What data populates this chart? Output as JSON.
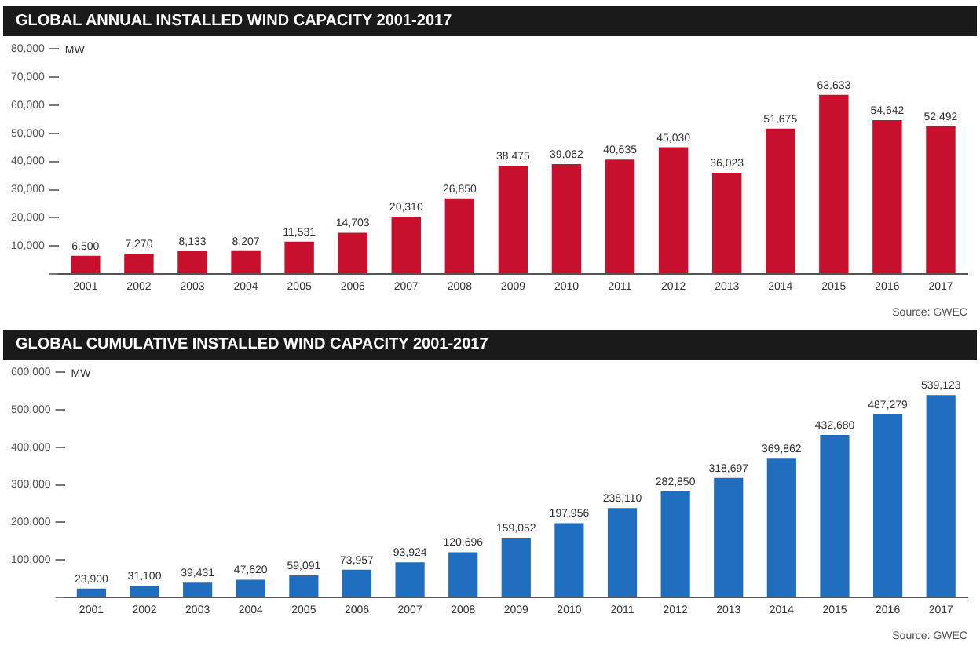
{
  "chart_data": [
    {
      "type": "bar",
      "title": "GLOBAL ANNUAL INSTALLED WIND CAPACITY 2001-2017",
      "ylabel": "MW",
      "categories": [
        "2001",
        "2002",
        "2003",
        "2004",
        "2005",
        "2006",
        "2007",
        "2008",
        "2009",
        "2010",
        "2011",
        "2012",
        "2013",
        "2014",
        "2015",
        "2016",
        "2017"
      ],
      "values": [
        6500,
        7270,
        8133,
        8207,
        11531,
        14703,
        20310,
        26850,
        38475,
        39062,
        40635,
        45030,
        36023,
        51675,
        63633,
        54642,
        52492
      ],
      "value_labels": [
        "6,500",
        "7,270",
        "8,133",
        "8,207",
        "11,531",
        "14,703",
        "20,310",
        "26,850",
        "38,475",
        "39,062",
        "40,635",
        "45,030",
        "36,023",
        "51,675",
        "63,633",
        "54,642",
        "52,492"
      ],
      "color": "#c8102e",
      "ylim": [
        0,
        80000
      ],
      "yticks": [
        {
          "value": 0,
          "label": null
        },
        {
          "value": 10000,
          "label": "10,000"
        },
        {
          "value": 20000,
          "label": "20,000"
        },
        {
          "value": 30000,
          "label": "30,000"
        },
        {
          "value": 40000,
          "label": "40,000"
        },
        {
          "value": 50000,
          "label": "50,000"
        },
        {
          "value": 60000,
          "label": "60,000"
        },
        {
          "value": 70000,
          "label": "70,000"
        },
        {
          "value": 80000,
          "label": "80,000"
        }
      ],
      "grid": false,
      "legend": false,
      "annotations": [
        "Source: GWEC"
      ]
    },
    {
      "type": "bar",
      "title": "GLOBAL CUMULATIVE INSTALLED WIND CAPACITY 2001-2017",
      "ylabel": "MW",
      "categories": [
        "2001",
        "2002",
        "2003",
        "2004",
        "2005",
        "2006",
        "2007",
        "2008",
        "2009",
        "2010",
        "2011",
        "2012",
        "2013",
        "2014",
        "2015",
        "2016",
        "2017"
      ],
      "values": [
        23900,
        31100,
        39431,
        47620,
        59091,
        73957,
        93924,
        120696,
        159052,
        197956,
        238110,
        282850,
        318697,
        369862,
        432680,
        487279,
        539123
      ],
      "value_labels": [
        "23,900",
        "31,100",
        "39,431",
        "47,620",
        "59,091",
        "73,957",
        "93,924",
        "120,696",
        "159,052",
        "197,956",
        "238,110",
        "282,850",
        "318,697",
        "369,862",
        "432,680",
        "487,279",
        "539,123"
      ],
      "color": "#1f6dbf",
      "ylim": [
        0,
        600000
      ],
      "yticks": [
        {
          "value": 0,
          "label": null
        },
        {
          "value": 100000,
          "label": "100,000"
        },
        {
          "value": 200000,
          "label": "200,000"
        },
        {
          "value": 300000,
          "label": "300,000"
        },
        {
          "value": 400000,
          "label": "400,000"
        },
        {
          "value": 500000,
          "label": "500,000"
        },
        {
          "value": 600000,
          "label": "600,000"
        }
      ],
      "grid": false,
      "legend": false,
      "annotations": [
        "Source: GWEC"
      ]
    }
  ]
}
